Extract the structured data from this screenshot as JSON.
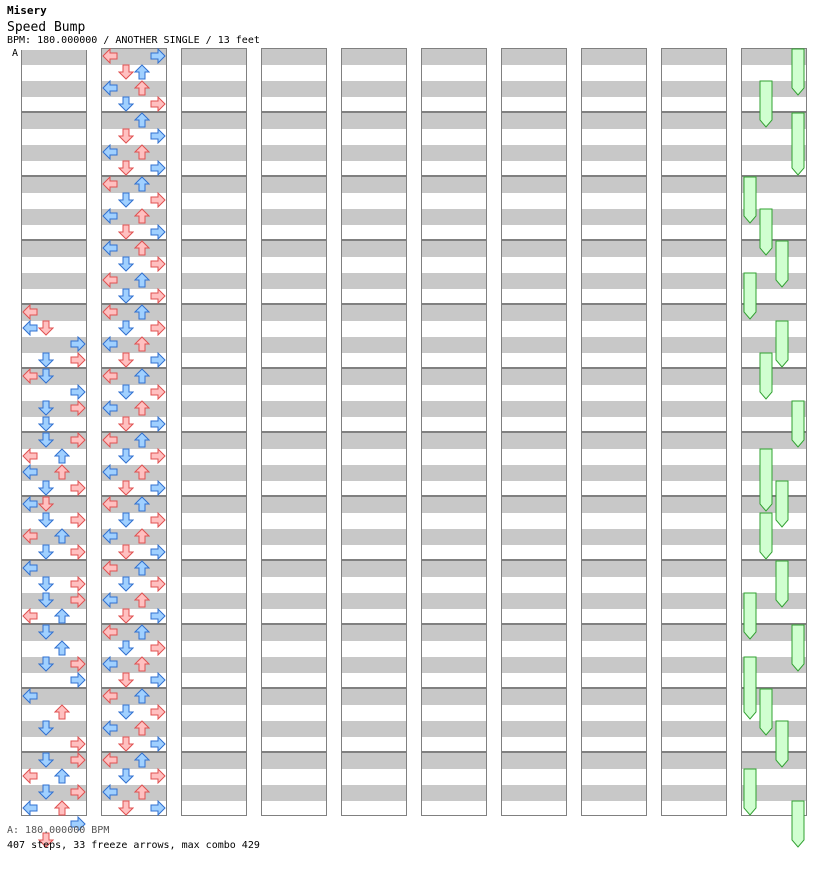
{
  "header": {
    "chart_name": "Misery",
    "song_title": "Speed Bump",
    "info": "BPM: 180.000000 / ANOTHER SINGLE / 13 feet",
    "section_marker": "A"
  },
  "footer": {
    "bpm_line": "A: 180.000000 BPM",
    "stats_line": "407 steps, 33 freeze arrows, max combo 429"
  },
  "colors": {
    "quarter": "#ffc0c0",
    "quarter_stroke": "#e05050",
    "eighth": "#a0d0ff",
    "eighth_stroke": "#3070d0",
    "freeze": "#d0ffd0",
    "freeze_stroke": "#30a030",
    "band": "#c8c8c8"
  },
  "chart_data": {
    "type": "step-chart",
    "columns": 10,
    "measures_per_column": 12,
    "beats_per_measure": 4,
    "lanes": [
      "left",
      "down",
      "up",
      "right"
    ],
    "bpm": 180,
    "difficulty": "ANOTHER SINGLE",
    "feet": 13,
    "steps": 407,
    "freeze_arrows": 33,
    "max_combo": 429,
    "notes": [
      [
        0,
        16,
        "L",
        1
      ],
      [
        0,
        17,
        "L",
        0
      ],
      [
        0,
        17,
        "D",
        1
      ],
      [
        0,
        18,
        "R",
        0
      ],
      [
        0,
        19,
        "D",
        0
      ],
      [
        0,
        19,
        "R",
        1
      ],
      [
        0,
        20,
        "L",
        1
      ],
      [
        0,
        20,
        "D",
        0
      ],
      [
        0,
        21,
        "R",
        0
      ],
      [
        0,
        22,
        "D",
        0
      ],
      [
        0,
        22,
        "R",
        1
      ],
      [
        0,
        23,
        "D",
        0
      ],
      [
        0,
        24,
        "D",
        0
      ],
      [
        0,
        24,
        "R",
        1
      ],
      [
        0,
        25,
        "L",
        1
      ],
      [
        0,
        25,
        "U",
        0
      ],
      [
        0,
        26,
        "L",
        0
      ],
      [
        0,
        26,
        "U",
        1
      ],
      [
        0,
        27,
        "D",
        0
      ],
      [
        0,
        27,
        "R",
        1
      ],
      [
        0,
        28,
        "L",
        0
      ],
      [
        0,
        28,
        "D",
        1
      ],
      [
        0,
        29,
        "D",
        0
      ],
      [
        0,
        29,
        "R",
        1
      ],
      [
        0,
        30,
        "L",
        1
      ],
      [
        0,
        30,
        "U",
        0
      ],
      [
        0,
        31,
        "D",
        0
      ],
      [
        0,
        31,
        "R",
        1
      ],
      [
        0,
        32,
        "L",
        0
      ],
      [
        0,
        33,
        "D",
        0
      ],
      [
        0,
        33,
        "R",
        1
      ],
      [
        0,
        34,
        "D",
        0
      ],
      [
        0,
        34,
        "R",
        1
      ],
      [
        0,
        35,
        "L",
        1
      ],
      [
        0,
        35,
        "U",
        0
      ],
      [
        0,
        36,
        "D",
        0
      ],
      [
        0,
        37,
        "U",
        0
      ],
      [
        0,
        38,
        "D",
        0
      ],
      [
        0,
        38,
        "R",
        1
      ],
      [
        0,
        39,
        "R",
        0
      ],
      [
        0,
        40,
        "L",
        0
      ],
      [
        0,
        41,
        "U",
        1
      ],
      [
        0,
        42,
        "D",
        0
      ],
      [
        0,
        43,
        "R",
        1
      ],
      [
        0,
        44,
        "D",
        0
      ],
      [
        0,
        44,
        "R",
        1
      ],
      [
        0,
        45,
        "L",
        1
      ],
      [
        0,
        45,
        "U",
        0
      ],
      [
        0,
        46,
        "D",
        0
      ],
      [
        0,
        46,
        "R",
        1
      ],
      [
        0,
        47,
        "L",
        0
      ],
      [
        0,
        47,
        "U",
        1
      ],
      [
        0,
        48,
        "R",
        0
      ],
      [
        0,
        49,
        "D",
        1
      ],
      [
        1,
        0,
        "L",
        1
      ],
      [
        1,
        0,
        "R",
        0
      ],
      [
        1,
        1,
        "D",
        1
      ],
      [
        1,
        1,
        "U",
        0
      ],
      [
        1,
        2,
        "L",
        0
      ],
      [
        1,
        2,
        "U",
        1
      ],
      [
        1,
        3,
        "D",
        0
      ],
      [
        1,
        3,
        "R",
        1
      ],
      [
        1,
        4,
        "U",
        0
      ],
      [
        1,
        5,
        "D",
        1
      ],
      [
        1,
        5,
        "R",
        0
      ],
      [
        1,
        6,
        "L",
        0
      ],
      [
        1,
        6,
        "U",
        1
      ],
      [
        1,
        7,
        "D",
        1
      ],
      [
        1,
        7,
        "R",
        0
      ],
      [
        1,
        8,
        "L",
        1
      ],
      [
        1,
        8,
        "U",
        0
      ],
      [
        1,
        9,
        "D",
        0
      ],
      [
        1,
        9,
        "R",
        1
      ],
      [
        1,
        10,
        "L",
        0
      ],
      [
        1,
        10,
        "U",
        1
      ],
      [
        1,
        11,
        "D",
        1
      ],
      [
        1,
        11,
        "R",
        0
      ],
      [
        1,
        12,
        "L",
        0
      ],
      [
        1,
        12,
        "U",
        1
      ],
      [
        1,
        13,
        "D",
        0
      ],
      [
        1,
        13,
        "R",
        1
      ],
      [
        1,
        14,
        "L",
        1
      ],
      [
        1,
        14,
        "U",
        0
      ],
      [
        1,
        15,
        "D",
        0
      ],
      [
        1,
        15,
        "R",
        1
      ],
      [
        1,
        16,
        "L",
        1
      ],
      [
        1,
        16,
        "U",
        0
      ],
      [
        1,
        17,
        "D",
        0
      ],
      [
        1,
        17,
        "R",
        1
      ],
      [
        1,
        18,
        "L",
        0
      ],
      [
        1,
        18,
        "U",
        1
      ],
      [
        1,
        19,
        "D",
        1
      ],
      [
        1,
        19,
        "R",
        0
      ],
      [
        1,
        20,
        "L",
        1
      ],
      [
        1,
        20,
        "U",
        0
      ],
      [
        1,
        21,
        "D",
        0
      ],
      [
        1,
        21,
        "R",
        1
      ],
      [
        1,
        22,
        "L",
        0
      ],
      [
        1,
        22,
        "U",
        1
      ],
      [
        1,
        23,
        "D",
        1
      ],
      [
        1,
        23,
        "R",
        0
      ],
      [
        1,
        24,
        "L",
        1
      ],
      [
        1,
        24,
        "U",
        0
      ],
      [
        1,
        25,
        "D",
        0
      ],
      [
        1,
        25,
        "R",
        1
      ],
      [
        1,
        26,
        "L",
        0
      ],
      [
        1,
        26,
        "U",
        1
      ],
      [
        1,
        27,
        "D",
        1
      ],
      [
        1,
        27,
        "R",
        0
      ],
      [
        1,
        28,
        "L",
        1
      ],
      [
        1,
        28,
        "U",
        0
      ],
      [
        1,
        29,
        "D",
        0
      ],
      [
        1,
        29,
        "R",
        1
      ],
      [
        1,
        30,
        "L",
        0
      ],
      [
        1,
        30,
        "U",
        1
      ],
      [
        1,
        31,
        "D",
        1
      ],
      [
        1,
        31,
        "R",
        0
      ],
      [
        1,
        32,
        "L",
        1
      ],
      [
        1,
        32,
        "U",
        0
      ],
      [
        1,
        33,
        "D",
        0
      ],
      [
        1,
        33,
        "R",
        1
      ],
      [
        1,
        34,
        "L",
        0
      ],
      [
        1,
        34,
        "U",
        1
      ],
      [
        1,
        35,
        "D",
        1
      ],
      [
        1,
        35,
        "R",
        0
      ],
      [
        1,
        36,
        "L",
        1
      ],
      [
        1,
        36,
        "U",
        0
      ],
      [
        1,
        37,
        "D",
        0
      ],
      [
        1,
        37,
        "R",
        1
      ],
      [
        1,
        38,
        "L",
        0
      ],
      [
        1,
        38,
        "U",
        1
      ],
      [
        1,
        39,
        "D",
        1
      ],
      [
        1,
        39,
        "R",
        0
      ],
      [
        1,
        40,
        "L",
        1
      ],
      [
        1,
        40,
        "U",
        0
      ],
      [
        1,
        41,
        "D",
        0
      ],
      [
        1,
        41,
        "R",
        1
      ],
      [
        1,
        42,
        "L",
        0
      ],
      [
        1,
        42,
        "U",
        1
      ],
      [
        1,
        43,
        "D",
        1
      ],
      [
        1,
        43,
        "R",
        0
      ],
      [
        1,
        44,
        "L",
        1
      ],
      [
        1,
        44,
        "U",
        0
      ],
      [
        1,
        45,
        "D",
        0
      ],
      [
        1,
        45,
        "R",
        1
      ],
      [
        1,
        46,
        "L",
        0
      ],
      [
        1,
        46,
        "U",
        1
      ],
      [
        1,
        47,
        "D",
        1
      ],
      [
        1,
        47,
        "R",
        0
      ]
    ],
    "freezes": [
      [
        9,
        0,
        2,
        "R"
      ],
      [
        9,
        2,
        4,
        "D"
      ],
      [
        9,
        4,
        7,
        "R"
      ],
      [
        9,
        8,
        10,
        "L"
      ],
      [
        9,
        10,
        12,
        "D"
      ],
      [
        9,
        12,
        14,
        "U"
      ],
      [
        9,
        14,
        16,
        "L"
      ],
      [
        9,
        17,
        19,
        "U"
      ],
      [
        9,
        19,
        21,
        "D"
      ],
      [
        9,
        22,
        24,
        "R"
      ],
      [
        9,
        25,
        28,
        "D"
      ],
      [
        9,
        27,
        29,
        "U"
      ],
      [
        9,
        29,
        31,
        "D"
      ],
      [
        9,
        32,
        34,
        "U"
      ],
      [
        9,
        34,
        36,
        "L"
      ],
      [
        9,
        36,
        38,
        "R"
      ],
      [
        9,
        38,
        41,
        "L"
      ],
      [
        9,
        40,
        42,
        "D"
      ],
      [
        9,
        42,
        44,
        "U"
      ],
      [
        9,
        45,
        47,
        "L"
      ],
      [
        9,
        47,
        49,
        "R"
      ]
    ]
  }
}
